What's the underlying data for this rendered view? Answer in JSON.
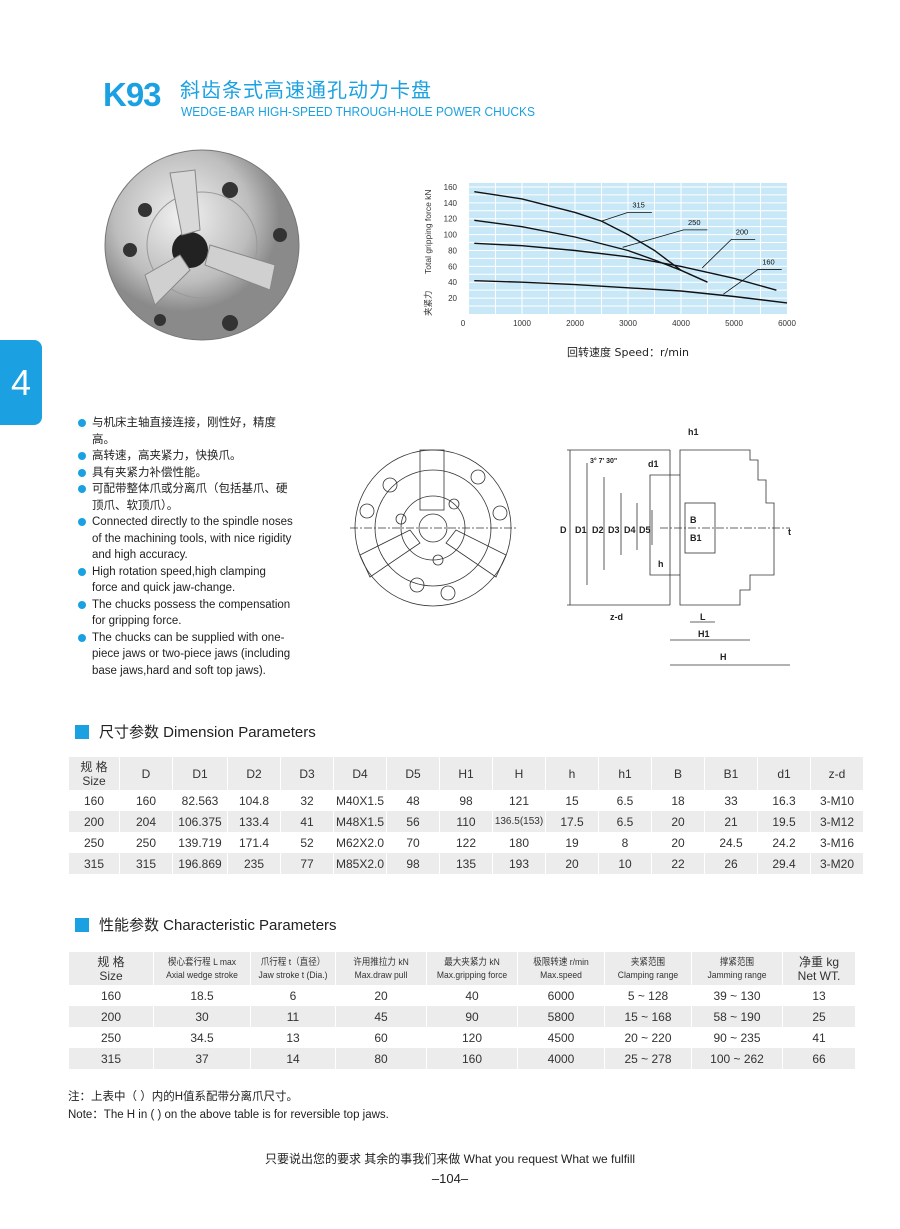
{
  "header": {
    "model": "K93",
    "title_cn": "斜齿条式高速通孔动力卡盘",
    "title_en": "WEDGE-BAR HIGH-SPEED THROUGH-HOLE POWER CHUCKS"
  },
  "side_tab": "4",
  "chart_data": {
    "type": "line",
    "xlabel": "回转速度   Speed：r/min",
    "ylabel_en": "Total  gripping  force  kN",
    "ylabel_cn": "夹紧力",
    "xlim": [
      0,
      6000
    ],
    "ylim": [
      0,
      165
    ],
    "x_ticks": [
      "0",
      "1000",
      "2000",
      "3000",
      "4000",
      "5000",
      "6000"
    ],
    "y_ticks": [
      "20",
      "40",
      "60",
      "80",
      "100",
      "120",
      "140",
      "160"
    ],
    "grid": true,
    "background": "#c8e8f8",
    "series": [
      {
        "name": "315",
        "x": [
          100,
          1000,
          2000,
          2500,
          3000,
          3500,
          4000
        ],
        "y": [
          154,
          145,
          128,
          117,
          100,
          80,
          55
        ]
      },
      {
        "name": "250",
        "x": [
          100,
          1000,
          2000,
          3000,
          3500,
          4000,
          4500
        ],
        "y": [
          118,
          110,
          97,
          80,
          68,
          55,
          40
        ]
      },
      {
        "name": "200",
        "x": [
          100,
          1000,
          2000,
          3000,
          4000,
          5000,
          5800
        ],
        "y": [
          89,
          86,
          80,
          72,
          60,
          45,
          30
        ]
      },
      {
        "name": "160",
        "x": [
          100,
          1000,
          2000,
          3000,
          4000,
          5000,
          6000
        ],
        "y": [
          42,
          40,
          37,
          33,
          29,
          22,
          14
        ]
      }
    ]
  },
  "features_cn": [
    "与机床主轴直接连接，刚性好，精度高。",
    "高转速，高夹紧力，快换爪。",
    "具有夹紧力补偿性能。",
    "可配带整体爪或分离爪（包括基爪、硬顶爪、软顶爪）。"
  ],
  "features_en": [
    "Connected directly to the spindle noses of the machining tools, with nice rigidity and high accuracy.",
    "High rotation speed,high clamping force and quick jaw-change.",
    "The chucks possess the compensation for gripping force.",
    "The chucks can be supplied with one-piece jaws or two-piece jaws (including base jaws,hard and soft top jaws)."
  ],
  "drawing_labels": {
    "D": "D",
    "D1": "D1",
    "D2": "D2",
    "D3": "D3",
    "D4": "D4",
    "D5": "D5",
    "h1": "h1",
    "h": "h",
    "d1": "d1",
    "B": "B",
    "B1": "B1",
    "t": "t",
    "zd": "z-d",
    "L": "L",
    "H1": "H1",
    "H": "H",
    "angle": "3° 7' 30\""
  },
  "dimension": {
    "title": "尺寸参数   Dimension Parameters",
    "size_cn": "规 格",
    "size_en": "Size",
    "headers": [
      "D",
      "D1",
      "D2",
      "D3",
      "D4",
      "D5",
      "H1",
      "H",
      "h",
      "h1",
      "B",
      "B1",
      "d1",
      "z-d"
    ],
    "rows": [
      [
        "160",
        "160",
        "82.563",
        "104.8",
        "32",
        "M40X1.5",
        "48",
        "98",
        "121",
        "15",
        "6.5",
        "18",
        "33",
        "16.3",
        "3-M10"
      ],
      [
        "200",
        "204",
        "106.375",
        "133.4",
        "41",
        "M48X1.5",
        "56",
        "110",
        "136.5(153)",
        "17.5",
        "6.5",
        "20",
        "21",
        "19.5",
        "3-M12"
      ],
      [
        "250",
        "250",
        "139.719",
        "171.4",
        "52",
        "M62X2.0",
        "70",
        "122",
        "180",
        "19",
        "8",
        "20",
        "24.5",
        "24.2",
        "3-M16"
      ],
      [
        "315",
        "315",
        "196.869",
        "235",
        "77",
        "M85X2.0",
        "98",
        "135",
        "193",
        "20",
        "10",
        "22",
        "26",
        "29.4",
        "3-M20"
      ]
    ]
  },
  "characteristic": {
    "title": "性能参数   Characteristic Parameters",
    "headers": [
      {
        "cn": "规 格",
        "en": "Size"
      },
      {
        "cn": "楔心套行程 L max",
        "en": "Axial wedge stroke"
      },
      {
        "cn": "爪行程 t（直径）",
        "en": "Jaw stroke t (Dia.)"
      },
      {
        "cn": "许用推拉力 kN",
        "en": "Max.draw pull"
      },
      {
        "cn": "最大夹紧力 kN",
        "en": "Max.gripping force"
      },
      {
        "cn": "极限转速 r/min",
        "en": "Max.speed"
      },
      {
        "cn": "夹紧范围",
        "en": "Clamping range"
      },
      {
        "cn": "撑紧范围",
        "en": "Jamming range"
      },
      {
        "cn": "净重 kg",
        "en": "Net WT."
      }
    ],
    "rows": [
      [
        "160",
        "18.5",
        "6",
        "20",
        "40",
        "6000",
        "5 ~ 128",
        "39 ~ 130",
        "13"
      ],
      [
        "200",
        "30",
        "11",
        "45",
        "90",
        "5800",
        "15 ~ 168",
        "58 ~ 190",
        "25"
      ],
      [
        "250",
        "34.5",
        "13",
        "60",
        "120",
        "4500",
        "20 ~ 220",
        "90 ~ 235",
        "41"
      ],
      [
        "315",
        "37",
        "14",
        "80",
        "160",
        "4000",
        "25 ~ 278",
        "100 ~ 262",
        "66"
      ]
    ]
  },
  "notes": {
    "cn": "注：上表中（  ）内的H值系配带分离爪尺寸。",
    "en": "Note：The H in (   ) on the above table is for reversible top jaws."
  },
  "footer": {
    "slogan": "只要说出您的要求  其余的事我们来做    What you request What we fulfill",
    "page": "–104–"
  },
  "colors": {
    "accent": "#1ba1e2",
    "row_alt": "#ececec"
  }
}
